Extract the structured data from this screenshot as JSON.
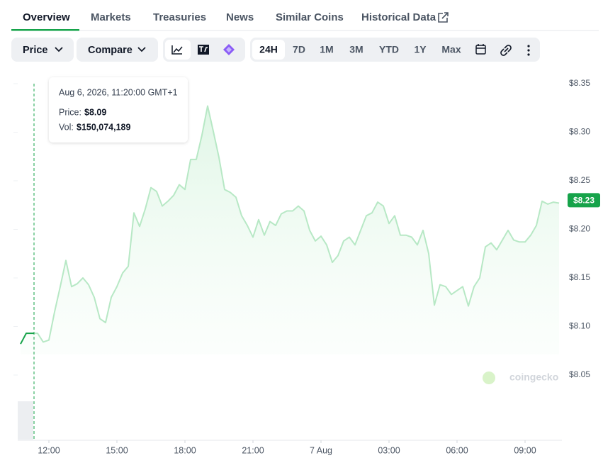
{
  "tabs": [
    "Overview",
    "Markets",
    "Treasuries",
    "News",
    "Similar Coins",
    "Historical Data"
  ],
  "toolbar": {
    "price": "Price",
    "compare": "Compare",
    "ranges": [
      "24H",
      "7D",
      "1M",
      "3M",
      "YTD",
      "1Y",
      "Max"
    ]
  },
  "chart_data": {
    "type": "line",
    "color": "#b7e8c5",
    "watermark": "coingecko",
    "tooltip": {
      "date": "Aug 6, 2026, 11:20:00 GMT+1",
      "price_label": "Price:",
      "price": "$8.09",
      "vol_label": "Vol:",
      "vol": "$150,074,189"
    },
    "last_price": {
      "value": 8.23,
      "label": "$8.23"
    },
    "x": [
      10.75,
      11,
      11.25,
      11.5,
      11.75,
      12,
      12.25,
      12.5,
      12.75,
      13,
      13.25,
      13.5,
      13.75,
      14,
      14.25,
      14.5,
      14.75,
      15,
      15.25,
      15.5,
      15.75,
      16,
      16.25,
      16.5,
      16.75,
      17,
      17.25,
      17.5,
      17.75,
      18,
      18.25,
      18.5,
      18.75,
      19,
      19.25,
      19.5,
      19.75,
      20,
      20.25,
      20.5,
      20.75,
      21,
      21.25,
      21.5,
      21.75,
      22,
      22.25,
      22.5,
      22.75,
      23,
      23.25,
      23.5,
      23.75,
      24,
      24.25,
      24.5,
      24.75,
      25,
      25.25,
      25.5,
      25.75,
      26,
      26.25,
      26.5,
      26.75,
      27,
      27.25,
      27.5,
      27.75,
      28,
      28.25,
      28.5,
      28.75,
      29,
      29.25,
      29.5,
      29.75,
      30,
      30.25,
      30.5,
      30.75,
      31,
      31.25,
      31.5,
      31.75,
      32,
      32.25,
      32.5,
      32.75,
      33,
      33.25,
      33.5,
      33.75,
      34,
      34.25,
      34.5
    ],
    "values": [
      8.082,
      8.093,
      8.093,
      8.093,
      8.084,
      8.086,
      8.115,
      8.141,
      8.168,
      8.141,
      8.144,
      8.15,
      8.143,
      8.13,
      8.108,
      8.104,
      8.13,
      8.141,
      8.155,
      8.162,
      8.217,
      8.203,
      8.221,
      8.243,
      8.239,
      8.224,
      8.229,
      8.235,
      8.246,
      8.241,
      8.272,
      8.272,
      8.297,
      8.327,
      8.301,
      8.274,
      8.241,
      8.238,
      8.233,
      8.214,
      8.204,
      8.192,
      8.21,
      8.194,
      8.208,
      8.204,
      8.216,
      8.219,
      8.219,
      8.224,
      8.219,
      8.199,
      8.188,
      8.193,
      8.184,
      8.166,
      8.173,
      8.188,
      8.192,
      8.184,
      8.199,
      8.214,
      8.217,
      8.228,
      8.224,
      8.206,
      8.214,
      8.194,
      8.194,
      8.192,
      8.184,
      8.199,
      8.175,
      8.122,
      8.143,
      8.141,
      8.133,
      8.137,
      8.141,
      8.121,
      8.141,
      8.15,
      8.182,
      8.186,
      8.179,
      8.189,
      8.199,
      8.189,
      8.187,
      8.187,
      8.194,
      8.204,
      8.229,
      8.226,
      8.228,
      8.227
    ],
    "xlim": [
      10.625,
      34.625
    ],
    "ylim": [
      8.05,
      8.35
    ],
    "xticks": [
      {
        "value": 12,
        "label": "12:00"
      },
      {
        "value": 15,
        "label": "15:00"
      },
      {
        "value": 18,
        "label": "18:00"
      },
      {
        "value": 21,
        "label": "21:00"
      },
      {
        "value": 24,
        "label": "7 Aug"
      },
      {
        "value": 27,
        "label": "03:00"
      },
      {
        "value": 30,
        "label": "06:00"
      },
      {
        "value": 33,
        "label": "09:00"
      }
    ],
    "yticks": [
      {
        "value": 8.05,
        "label": "$8.05"
      },
      {
        "value": 8.1,
        "label": "$8.10"
      },
      {
        "value": 8.15,
        "label": "$8.15"
      },
      {
        "value": 8.2,
        "label": "$8.20"
      },
      {
        "value": 8.25,
        "label": "$8.25"
      },
      {
        "value": 8.3,
        "label": "$8.30"
      },
      {
        "value": 8.35,
        "label": "$8.35"
      }
    ],
    "grid": false
  }
}
